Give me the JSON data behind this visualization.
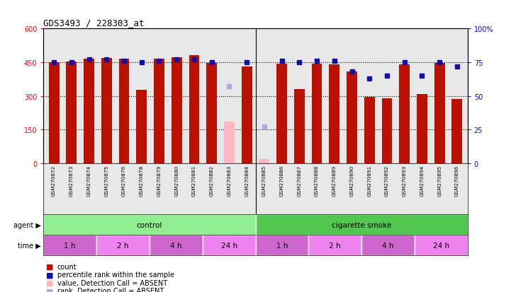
{
  "title": "GDS3493 / 228303_at",
  "samples": [
    "GSM270872",
    "GSM270873",
    "GSM270874",
    "GSM270875",
    "GSM270876",
    "GSM270878",
    "GSM270879",
    "GSM270880",
    "GSM270881",
    "GSM270882",
    "GSM270883",
    "GSM270884",
    "GSM270885",
    "GSM270886",
    "GSM270887",
    "GSM270888",
    "GSM270889",
    "GSM270890",
    "GSM270891",
    "GSM270892",
    "GSM270893",
    "GSM270894",
    "GSM270895",
    "GSM270896"
  ],
  "counts": [
    450,
    452,
    465,
    470,
    467,
    328,
    465,
    472,
    480,
    447,
    null,
    430,
    null,
    443,
    330,
    443,
    440,
    408,
    297,
    290,
    440,
    308,
    447,
    285
  ],
  "counts_absent": [
    null,
    null,
    null,
    null,
    null,
    null,
    null,
    null,
    null,
    null,
    185,
    null,
    18,
    null,
    null,
    null,
    null,
    null,
    null,
    null,
    null,
    null,
    null,
    null
  ],
  "ranks": [
    75,
    75,
    77,
    77,
    76,
    75,
    76,
    77,
    77,
    75,
    null,
    75,
    null,
    76,
    75,
    76,
    76,
    68,
    63,
    65,
    75,
    65,
    75,
    72
  ],
  "ranks_absent": [
    null,
    null,
    null,
    null,
    null,
    null,
    null,
    null,
    null,
    null,
    57,
    null,
    27,
    null,
    null,
    null,
    null,
    null,
    null,
    null,
    null,
    null,
    null,
    null
  ],
  "agent_groups": [
    {
      "label": "control",
      "start": 0,
      "end": 12,
      "color": "#90EE90"
    },
    {
      "label": "cigarette smoke",
      "start": 12,
      "end": 24,
      "color": "#50C850"
    }
  ],
  "time_groups": [
    {
      "label": "1 h",
      "start": 0,
      "end": 3,
      "color": "#CC66CC"
    },
    {
      "label": "2 h",
      "start": 3,
      "end": 6,
      "color": "#EE82EE"
    },
    {
      "label": "4 h",
      "start": 6,
      "end": 9,
      "color": "#CC66CC"
    },
    {
      "label": "24 h",
      "start": 9,
      "end": 12,
      "color": "#EE82EE"
    },
    {
      "label": "1 h",
      "start": 12,
      "end": 15,
      "color": "#CC66CC"
    },
    {
      "label": "2 h",
      "start": 15,
      "end": 18,
      "color": "#EE82EE"
    },
    {
      "label": "4 h",
      "start": 18,
      "end": 21,
      "color": "#CC66CC"
    },
    {
      "label": "24 h",
      "start": 21,
      "end": 24,
      "color": "#EE82EE"
    }
  ],
  "bar_color": "#BB1100",
  "bar_color_absent": "#FFB6C1",
  "rank_color": "#1111AA",
  "rank_color_absent": "#AAAADD",
  "ylim_left": [
    0,
    600
  ],
  "ylim_right": [
    0,
    100
  ],
  "yticks_left": [
    0,
    150,
    300,
    450,
    600
  ],
  "ytick_labels_left": [
    "0",
    "150",
    "300",
    "450",
    "600"
  ],
  "yticks_right": [
    0,
    25,
    50,
    75,
    100
  ],
  "ytick_labels_right": [
    "0",
    "25",
    "50",
    "75",
    "100%"
  ],
  "hlines": [
    150,
    300,
    450
  ],
  "bg_color": "#E8E8E8",
  "plot_bg": "#FFFFFF",
  "control_sep": 11.5
}
